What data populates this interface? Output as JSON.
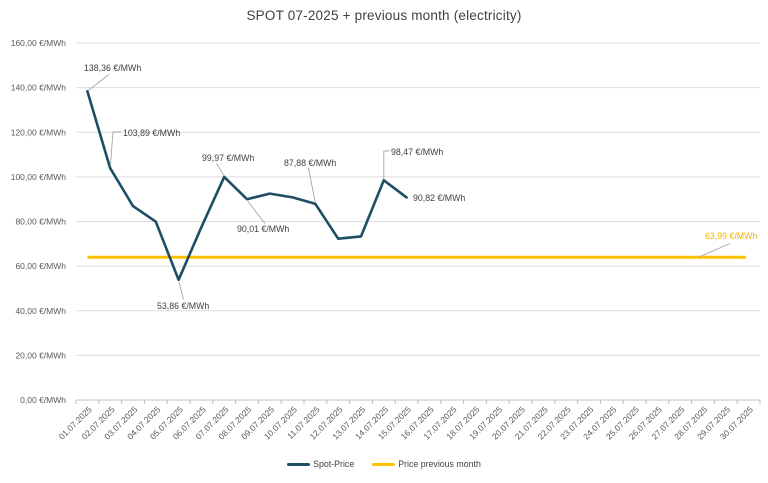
{
  "page": {
    "background": "#FFFFFF"
  },
  "chart_data": {
    "type": "line",
    "title": "SPOT 07-2025 + previous month (electricity)",
    "unit": "€/MWh",
    "grid": true,
    "legend_position": "bottom-center",
    "x_axis": {
      "tick_labels": [
        "01.07.2025",
        "02.07.2025",
        "03.07.2025",
        "04.07.2025",
        "05.07.2025",
        "06.07.2025",
        "07.07.2025",
        "08.07.2025",
        "09.07.2025",
        "10.07.2025",
        "11.07.2025",
        "12.07.2025",
        "13.07.2025",
        "14.07.2025",
        "15.07.2025",
        "16.07.2025",
        "17.07.2025",
        "18.07.2025",
        "19.07.2025",
        "20.07.2025",
        "21.07.2025",
        "22.07.2025",
        "23.07.2025",
        "24.07.2025",
        "25.07.2025",
        "26.07.2025",
        "27.07.2025",
        "28.07.2025",
        "29.07.2025",
        "30.07.2025"
      ],
      "rotation_deg": -45
    },
    "y_axis": {
      "min": 0,
      "max": 160,
      "step": 20,
      "tick_labels": [
        "0,00 €/MWh",
        "20,00 €/MWh",
        "40,00 €/MWh",
        "60,00 €/MWh",
        "80,00 €/MWh",
        "100,00 €/MWh",
        "120,00 €/MWh",
        "140,00 €/MWh",
        "160,00 €/MWh"
      ]
    },
    "series": [
      {
        "name": "Spot-Price",
        "color": "#1E4D66",
        "values": [
          138.36,
          103.89,
          86.9,
          79.9,
          53.86,
          77.5,
          99.97,
          90.01,
          92.5,
          90.8,
          87.88,
          72.3,
          73.3,
          98.47,
          90.82,
          null,
          null,
          null,
          null,
          null,
          null,
          null,
          null,
          null,
          null,
          null,
          null,
          null,
          null,
          null
        ]
      },
      {
        "name": "Price previous month",
        "color": "#FFC000",
        "constant_value": 63.99,
        "covers": [
          "01.07.2025",
          "30.07.2025"
        ]
      }
    ],
    "annotations": [
      {
        "series": "Spot-Price",
        "category": "01.07.2025",
        "value": 138.36,
        "text": "138,36 €/MWh"
      },
      {
        "series": "Spot-Price",
        "category": "02.07.2025",
        "value": 103.89,
        "text": "103,89 €/MWh"
      },
      {
        "series": "Spot-Price",
        "category": "05.07.2025",
        "value": 53.86,
        "text": "53,86 €/MWh"
      },
      {
        "series": "Spot-Price",
        "category": "07.07.2025",
        "value": 99.97,
        "text": "99,97 €/MWh"
      },
      {
        "series": "Spot-Price",
        "category": "08.07.2025",
        "value": 90.01,
        "text": "90,01 €/MWh"
      },
      {
        "series": "Spot-Price",
        "category": "11.07.2025",
        "value": 87.88,
        "text": "87,88 €/MWh"
      },
      {
        "series": "Spot-Price",
        "category": "14.07.2025",
        "value": 98.47,
        "text": "98,47 €/MWh"
      },
      {
        "series": "Spot-Price",
        "category": "15.07.2025",
        "value": 90.82,
        "text": "90,82 €/MWh"
      },
      {
        "series": "Price previous month",
        "value": 63.99,
        "text": "63,99 €/MWh"
      }
    ]
  },
  "colors": {
    "title_text": "#404040",
    "axis_text": "#595959",
    "data_label_text": "#404040",
    "prev_label_text": "#F2B100",
    "gridline": "#DCDCDC",
    "axis_line": "#BFBFBF",
    "leader_line": "#A6A6A6"
  }
}
